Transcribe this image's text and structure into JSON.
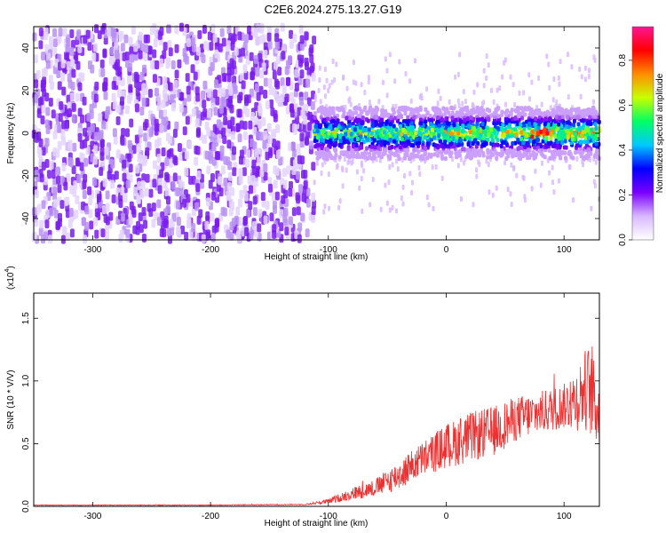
{
  "title": "C2E6.2024.275.13.27.G19",
  "chart_data": [
    {
      "type": "heatmap",
      "xlabel": "Height of straight line (km)",
      "ylabel": "Frequency (Hz)",
      "xlim": [
        -350,
        130
      ],
      "ylim": [
        -50,
        50
      ],
      "xticks": [
        -300,
        -200,
        -100,
        0,
        100
      ],
      "yticks": [
        -40,
        -20,
        0,
        20,
        40
      ],
      "xtick_labels": [
        "-300",
        "-200",
        "-100",
        "0",
        "100"
      ],
      "ytick_labels": [
        "-40",
        "-20",
        "0",
        "20",
        "40"
      ],
      "description_regions": [
        {
          "x_range": [
            -350,
            -112
          ],
          "y_range": [
            -50,
            50
          ],
          "amplitude_range": [
            0.0,
            0.15
          ]
        },
        {
          "x_range": [
            -112,
            130
          ],
          "y_range": [
            -12,
            12
          ],
          "amplitude_range": [
            0.1,
            0.9
          ],
          "peak_x": 80,
          "peak_y": 0
        }
      ],
      "colorbar": {
        "label": "Normalized spectral amplitude",
        "range": [
          0.0,
          0.95
        ],
        "ticks": [
          0.0,
          0.2,
          0.4,
          0.6,
          0.8
        ],
        "tick_labels": [
          "0.0",
          "0.2",
          "0.4",
          "0.6",
          "0.8"
        ],
        "colors": [
          "#ffffff",
          "#d8b8ff",
          "#7a00ff",
          "#0000ff",
          "#00c8ff",
          "#00ff64",
          "#c8ff00",
          "#ff8c00",
          "#ff0000",
          "#ff1493"
        ]
      }
    },
    {
      "type": "line",
      "xlabel": "Height of straight line (km)",
      "ylabel": "SNR (10 * V/V)",
      "y_multiplier_label": "(x10",
      "y_multiplier_exp": "4",
      "y_multiplier_close": ")",
      "xlim": [
        -350,
        130
      ],
      "ylim": [
        0,
        1.7
      ],
      "xticks": [
        -300,
        -200,
        -100,
        0,
        100
      ],
      "yticks": [
        0.0,
        0.5,
        1.0,
        1.5
      ],
      "xtick_labels": [
        "-300",
        "-200",
        "-100",
        "0",
        "100"
      ],
      "ytick_labels": [
        "0.0",
        "0.5",
        "1.0",
        "1.5"
      ],
      "line_color": "#ee3030",
      "x": [
        -350,
        -200,
        -120,
        -100,
        -80,
        -60,
        -40,
        -20,
        0,
        20,
        40,
        60,
        80,
        100,
        110,
        120,
        130
      ],
      "y": [
        0.01,
        0.01,
        0.015,
        0.04,
        0.1,
        0.15,
        0.25,
        0.38,
        0.48,
        0.55,
        0.6,
        0.7,
        0.75,
        0.8,
        0.85,
        0.95,
        0.75
      ],
      "y_noise": [
        0.003,
        0.003,
        0.004,
        0.02,
        0.05,
        0.07,
        0.12,
        0.14,
        0.18,
        0.2,
        0.2,
        0.18,
        0.17,
        0.18,
        0.25,
        0.35,
        0.3
      ]
    }
  ]
}
